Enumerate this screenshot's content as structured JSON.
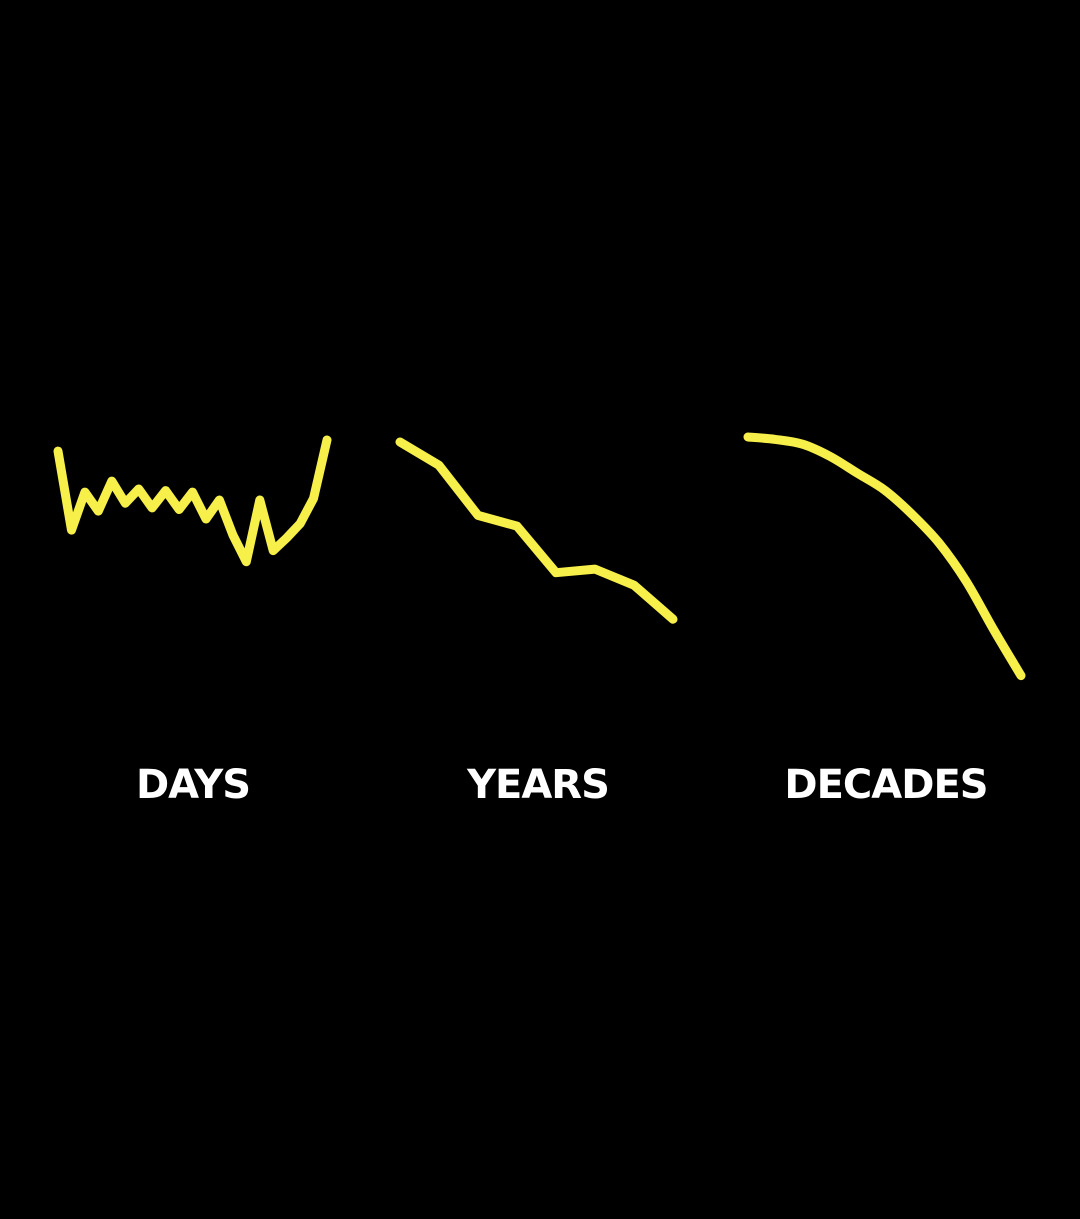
{
  "colors": {
    "background": "#000000",
    "line": "#f7ef4a",
    "label": "#ffffff"
  },
  "chart_data": [
    {
      "type": "line",
      "title": "",
      "xlabel": "DAYS",
      "ylabel": "",
      "series": [
        {
          "x": [
            0,
            1,
            2,
            3,
            4,
            5,
            6,
            7,
            8,
            9,
            10,
            11,
            12,
            13,
            14,
            15,
            16,
            17,
            18,
            19,
            20
          ],
          "values": [
            93,
            43,
            67,
            55,
            74,
            60,
            69,
            57,
            68,
            56,
            67,
            50,
            62,
            40,
            23,
            62,
            30,
            38,
            47,
            63,
            100
          ]
        }
      ]
    },
    {
      "type": "line",
      "title": "",
      "xlabel": "YEARS",
      "ylabel": "",
      "series": [
        {
          "x": [
            0,
            1,
            2,
            3,
            4,
            5,
            6,
            7
          ],
          "values": [
            100,
            87,
            59,
            53,
            27,
            29,
            20,
            1
          ]
        }
      ]
    },
    {
      "type": "line",
      "title": "",
      "xlabel": "DECADES",
      "ylabel": "",
      "series": [
        {
          "x": [
            0,
            1,
            2,
            3,
            4,
            5,
            6,
            7,
            8,
            9,
            10
          ],
          "values": [
            100,
            99,
            97,
            92,
            85,
            78,
            68,
            56,
            40,
            20,
            1
          ]
        }
      ]
    }
  ]
}
